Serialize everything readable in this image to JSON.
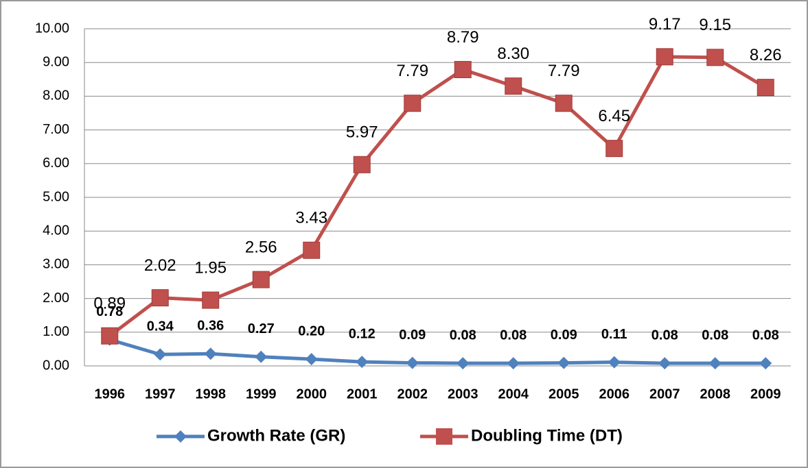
{
  "chart_data": {
    "type": "line",
    "categories": [
      "1996",
      "1997",
      "1998",
      "1999",
      "2000",
      "2001",
      "2002",
      "2003",
      "2004",
      "2005",
      "2006",
      "2007",
      "2008",
      "2009"
    ],
    "series": [
      {
        "name": "Growth Rate (GR)",
        "color": "#4f81bd",
        "marker": "diamond",
        "values": [
          0.78,
          0.34,
          0.36,
          0.27,
          0.2,
          0.12,
          0.09,
          0.08,
          0.08,
          0.09,
          0.11,
          0.08,
          0.08,
          0.08
        ],
        "value_labels": [
          "0.78",
          "0.34",
          "0.36",
          "0.27",
          "0.20",
          "0.12",
          "0.09",
          "0.08",
          "0.08",
          "0.09",
          "0.11",
          "0.08",
          "0.08",
          "0.08"
        ]
      },
      {
        "name": "Doubling Time (DT)",
        "color": "#c0504d",
        "marker": "square",
        "values": [
          0.89,
          2.02,
          1.95,
          2.56,
          3.43,
          5.97,
          7.79,
          8.79,
          8.3,
          7.79,
          6.45,
          9.17,
          9.15,
          8.26
        ],
        "value_labels": [
          "0.89",
          "2.02",
          "1.95",
          "2.56",
          "3.43",
          "5.97",
          "7.79",
          "8.79",
          "8.30",
          "7.79",
          "6.45",
          "9.17",
          "9.15",
          "8.26"
        ]
      }
    ],
    "ylim": [
      0,
      10
    ],
    "yticks": [
      {
        "value": 0,
        "label": "0.00"
      },
      {
        "value": 1,
        "label": "1.00"
      },
      {
        "value": 2,
        "label": "2.00"
      },
      {
        "value": 3,
        "label": "3.00"
      },
      {
        "value": 4,
        "label": "4.00"
      },
      {
        "value": 5,
        "label": "5.00"
      },
      {
        "value": 6,
        "label": "6.00"
      },
      {
        "value": 7,
        "label": "7.00"
      },
      {
        "value": 8,
        "label": "8.00"
      },
      {
        "value": 9,
        "label": "9.00"
      },
      {
        "value": 10,
        "label": "10.00"
      }
    ],
    "grid": true,
    "legend": "bottom"
  }
}
